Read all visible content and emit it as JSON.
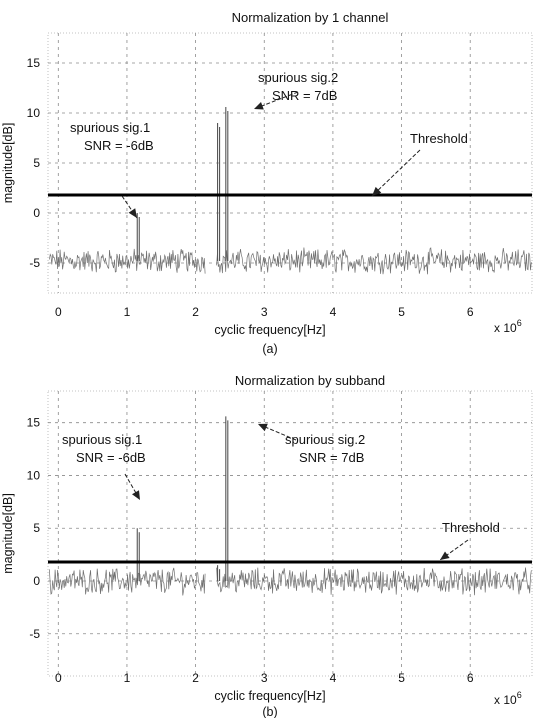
{
  "chart_data": [
    {
      "type": "line",
      "title": "Normalization by 1 channel",
      "xlabel": "cyclic frequency[Hz]",
      "ylabel": "magnitude[dB]",
      "x_multiplier": "x 10",
      "x_multiplier_exp": "6",
      "panel_label": "(a)",
      "xlim": [
        -0.15,
        6.9
      ],
      "ylim": [
        -8,
        18
      ],
      "x_ticks": [
        0,
        1,
        2,
        3,
        4,
        5,
        6
      ],
      "y_ticks": [
        -5,
        0,
        5,
        10,
        15
      ],
      "grid": true,
      "noise_floor_db": -4.8,
      "noise_gap_x": [
        2.15,
        2.3
      ],
      "threshold_db": 1.8,
      "spikes": [
        {
          "x": 1.15,
          "peak_db": 0
        },
        {
          "x": 2.44,
          "peak_db": 10.6
        },
        {
          "x": 2.32,
          "peak_db": 9.0
        }
      ],
      "annotations": [
        {
          "id": "a1",
          "lines": [
            "spurious sig.1",
            "SNR = -6dB"
          ]
        },
        {
          "id": "a2",
          "lines": [
            "spurious sig.2",
            "SNR = 7dB"
          ]
        },
        {
          "id": "a3",
          "lines": [
            "Threshold"
          ]
        }
      ]
    },
    {
      "type": "line",
      "title": "Normalization by subband",
      "xlabel": "cyclic frequency[Hz]",
      "ylabel": "magnitude[dB]",
      "x_multiplier": "x 10",
      "x_multiplier_exp": "6",
      "panel_label": "(b)",
      "xlim": [
        -0.15,
        6.9
      ],
      "ylim": [
        -9,
        18
      ],
      "x_ticks": [
        0,
        1,
        2,
        3,
        4,
        5,
        6
      ],
      "y_ticks": [
        -5,
        0,
        5,
        10,
        15
      ],
      "grid": true,
      "noise_floor_db": 0,
      "noise_gap_x": [
        2.15,
        2.3
      ],
      "threshold_db": 1.8,
      "spikes": [
        {
          "x": 1.15,
          "peak_db": 5.0
        },
        {
          "x": 2.44,
          "peak_db": 15.6
        },
        {
          "x": 2.32,
          "peak_db": 1.5
        }
      ],
      "annotations": [
        {
          "id": "b1",
          "lines": [
            "spurious sig.1",
            "SNR = -6dB"
          ]
        },
        {
          "id": "b2",
          "lines": [
            "spurious sig.2",
            "SNR = 7dB"
          ]
        },
        {
          "id": "b3",
          "lines": [
            "Threshold"
          ]
        }
      ]
    }
  ]
}
